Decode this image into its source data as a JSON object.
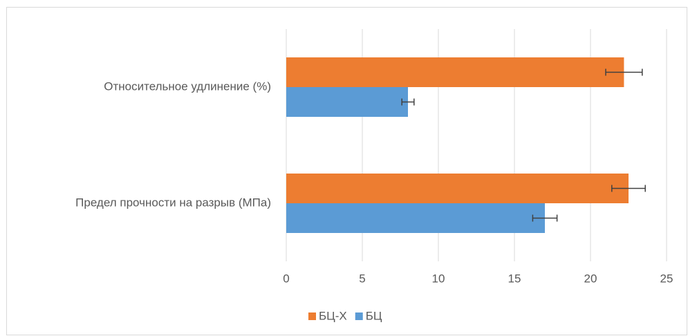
{
  "chart_data": {
    "type": "bar",
    "orientation": "horizontal",
    "categories": [
      "Относительное удлинение (%)",
      "Предел прочности на разрыв (МПа)"
    ],
    "series": [
      {
        "name": "БЦ-Х",
        "color": "#ed7d31",
        "values": [
          22.2,
          22.5
        ],
        "errors": [
          1.2,
          1.1
        ]
      },
      {
        "name": "БЦ",
        "color": "#5b9bd5",
        "values": [
          8.0,
          17.0
        ],
        "errors": [
          0.4,
          0.8
        ]
      }
    ],
    "xlim": [
      0,
      25
    ],
    "xticks": [
      0,
      5,
      10,
      15,
      20,
      25
    ],
    "grid": true,
    "legend": "bottom"
  }
}
